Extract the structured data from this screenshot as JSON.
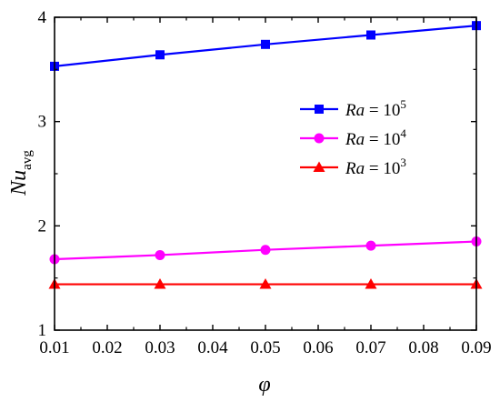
{
  "chart_data": {
    "type": "line",
    "x": [
      0.01,
      0.03,
      0.05,
      0.07,
      0.09
    ],
    "xlim": [
      0.01,
      0.09
    ],
    "ylim": [
      1,
      4
    ],
    "xticks": [
      "0.01",
      "0.02",
      "0.03",
      "0.04",
      "0.05",
      "0.06",
      "0.07",
      "0.08",
      "0.09"
    ],
    "yticks": [
      "1",
      "2",
      "3",
      "4"
    ],
    "xlabel": "φ",
    "ylabel": {
      "main": "Nu",
      "sub": "avg"
    },
    "grid": false,
    "legend_position": "right",
    "series": [
      {
        "label": {
          "base": "Ra",
          "eq": " = 10",
          "exp": "5"
        },
        "values": [
          3.53,
          3.64,
          3.74,
          3.83,
          3.92
        ],
        "color": "#0000ff",
        "marker": "square"
      },
      {
        "label": {
          "base": "Ra",
          "eq": " = 10",
          "exp": "4"
        },
        "values": [
          1.68,
          1.72,
          1.77,
          1.81,
          1.85
        ],
        "color": "#ff00ff",
        "marker": "circle"
      },
      {
        "label": {
          "base": "Ra",
          "eq": " = 10",
          "exp": "3"
        },
        "values": [
          1.44,
          1.44,
          1.44,
          1.44,
          1.44
        ],
        "color": "#ff0000",
        "marker": "triangle"
      }
    ]
  }
}
